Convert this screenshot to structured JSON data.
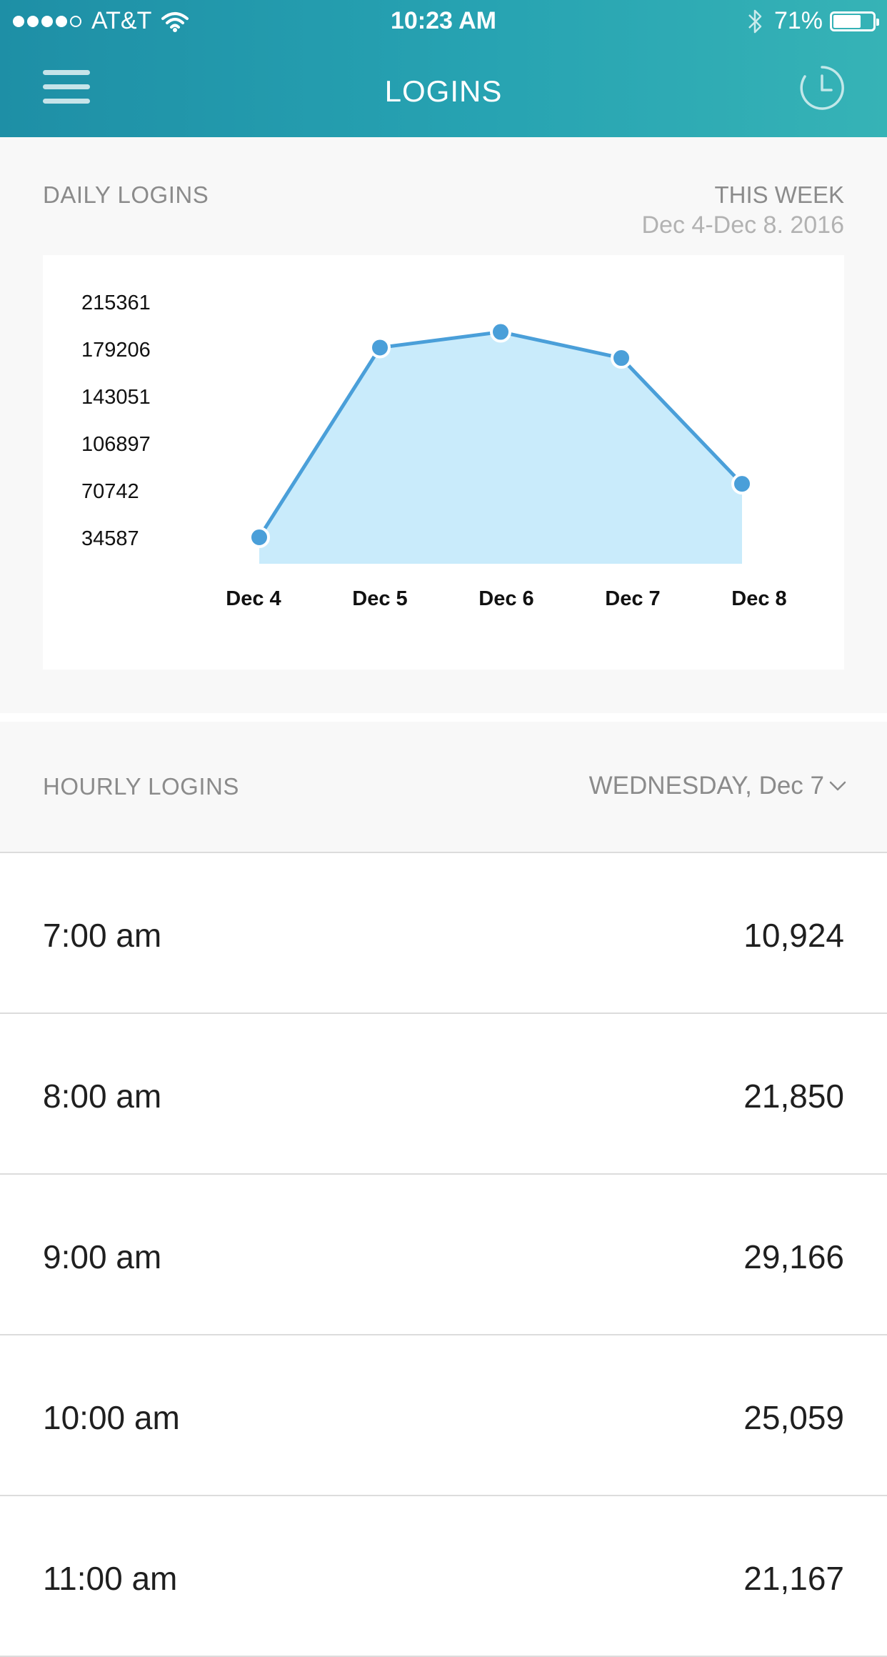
{
  "status_bar": {
    "carrier": "AT&T",
    "time": "10:23 AM",
    "battery": "71%",
    "battery_level": 0.71,
    "signal_bars_filled": 4,
    "signal_bars_total": 5
  },
  "nav": {
    "title": "LOGINS"
  },
  "daily": {
    "title": "DAILY LOGINS",
    "period_label": "THIS WEEK",
    "date_range": "Dec 4-Dec 8. 2016"
  },
  "chart_data": {
    "type": "area",
    "title": "",
    "xlabel": "",
    "ylabel": "",
    "categories": [
      "Dec 4",
      "Dec 5",
      "Dec 6",
      "Dec 7",
      "Dec 8"
    ],
    "y_ticks": [
      "215361",
      "179206",
      "143051",
      "106897",
      "70742",
      "34587"
    ],
    "series": [
      {
        "values": [
          34000,
          179500,
          191500,
          171500,
          75000
        ]
      }
    ],
    "ylim": [
      17000,
      215361
    ],
    "grid": false,
    "colors": {
      "line": "#4a9fd9",
      "fill": "#c9ebfb",
      "point": "#4a9fd9"
    }
  },
  "hourly": {
    "title": "HOURLY LOGINS",
    "selected_day": "WEDNESDAY, Dec 7",
    "rows": [
      {
        "time": "7:00 am",
        "value": "10,924"
      },
      {
        "time": "8:00 am",
        "value": "21,850"
      },
      {
        "time": "9:00 am",
        "value": "29,166"
      },
      {
        "time": "10:00 am",
        "value": "25,059"
      },
      {
        "time": "11:00 am",
        "value": "21,167"
      }
    ]
  },
  "icons": {
    "menu": "menu-icon",
    "history": "history-icon",
    "wifi": "wifi-icon",
    "bluetooth": "bluetooth-icon",
    "chevron": "chevron-down-icon"
  }
}
